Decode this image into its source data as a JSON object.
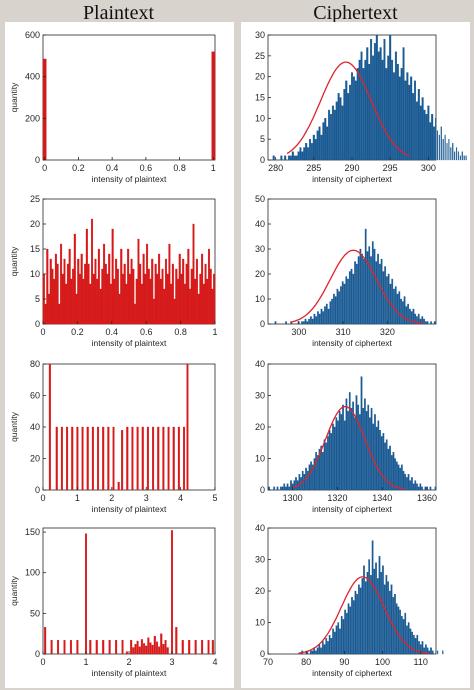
{
  "column_titles": {
    "left": "Plaintext",
    "right": "Ciphertext"
  },
  "colors": {
    "plain_bar": "#d61a1a",
    "cipher_bar": "#1a5a93",
    "fit_curve": "#e0242c",
    "panel_bg": "#d9d3cd"
  },
  "chart_data": [
    {
      "type": "bar",
      "column": "plaintext",
      "xlabel": "intensity of plaintext",
      "ylabel": "quantity",
      "xlim": [
        -0.01,
        1.01
      ],
      "ylim": [
        0,
        600
      ],
      "xticks": [
        0,
        0.2,
        0.4,
        0.6,
        0.8,
        1
      ],
      "xtick_labels": [
        "0",
        "0.2",
        "0.4",
        "0.6",
        "0.8",
        "1"
      ],
      "yticks": [
        0,
        200,
        400,
        600
      ],
      "ytick_labels": [
        "0",
        "200",
        "400",
        "600"
      ],
      "bar_width": 0.02,
      "x": [
        0,
        1
      ],
      "values": [
        485,
        520
      ],
      "fit": null
    },
    {
      "type": "bar",
      "column": "plaintext",
      "xlabel": "intensity of plaintext",
      "ylabel": "quantity",
      "xlim": [
        0,
        1
      ],
      "ylim": [
        0,
        25
      ],
      "xticks": [
        0,
        0.2,
        0.4,
        0.6,
        0.8,
        1
      ],
      "xtick_labels": [
        "0",
        "0.2",
        "0.4",
        "0.6",
        "0.8",
        "1"
      ],
      "yticks": [
        0,
        5,
        10,
        15,
        20,
        25
      ],
      "ytick_labels": [
        "0",
        "5",
        "10",
        "15",
        "20",
        "25"
      ],
      "bar_width": 0.01,
      "x_start": 0.005,
      "x_step": 0.01,
      "values": [
        10,
        4,
        15,
        6,
        13,
        11,
        9,
        14,
        12,
        4,
        16,
        10,
        13,
        8,
        12,
        15,
        9,
        11,
        18,
        6,
        13,
        10,
        14,
        9,
        12,
        19,
        12,
        8,
        21,
        10,
        13,
        9,
        15,
        7,
        11,
        16,
        12,
        10,
        14,
        8,
        19,
        9,
        13,
        11,
        6,
        15,
        10,
        12,
        8,
        15,
        10,
        13,
        11,
        4,
        9,
        17,
        12,
        8,
        14,
        10,
        16,
        11,
        9,
        13,
        5,
        12,
        10,
        14,
        9,
        11,
        7,
        13,
        10,
        16,
        8,
        12,
        5,
        11,
        9,
        14,
        10,
        13,
        8,
        12,
        15,
        7,
        11,
        20,
        9,
        13,
        6,
        10,
        14,
        8,
        12,
        9,
        15,
        11,
        7,
        10
      ],
      "fit": null
    },
    {
      "type": "bar",
      "column": "plaintext",
      "xlabel": "intensity of plaintext",
      "ylabel": "quantity",
      "xlim": [
        0,
        5
      ],
      "ylim": [
        0,
        80
      ],
      "xticks": [
        0,
        1,
        2,
        3,
        4,
        5
      ],
      "xtick_labels": [
        "0",
        "1",
        "2",
        "3",
        "4",
        "5"
      ],
      "yticks": [
        0,
        20,
        40,
        60,
        80
      ],
      "ytick_labels": [
        "0",
        "20",
        "40",
        "60",
        "80"
      ],
      "bar_width": 0.05,
      "x": [
        0.2,
        0.4,
        0.55,
        0.7,
        0.85,
        1.0,
        1.15,
        1.3,
        1.45,
        1.6,
        1.75,
        1.9,
        2.05,
        2.2,
        2.3,
        2.45,
        2.6,
        2.75,
        2.9,
        3.05,
        3.2,
        3.35,
        3.5,
        3.65,
        3.8,
        3.95,
        4.1,
        4.2
      ],
      "values": [
        80,
        40,
        40,
        40,
        40,
        40,
        40,
        40,
        40,
        40,
        40,
        40,
        40,
        5,
        38,
        40,
        40,
        40,
        40,
        40,
        40,
        40,
        40,
        40,
        40,
        40,
        40,
        80
      ],
      "fit": null
    },
    {
      "type": "bar",
      "column": "plaintext",
      "xlabel": "intensity of plaintext",
      "ylabel": "quantity",
      "xlim": [
        0,
        4
      ],
      "ylim": [
        0,
        155
      ],
      "xticks": [
        0,
        1,
        2,
        3,
        4
      ],
      "xtick_labels": [
        "0",
        "1",
        "2",
        "3",
        "4"
      ],
      "yticks": [
        0,
        50,
        100,
        150
      ],
      "ytick_labels": [
        "0",
        "50",
        "100",
        "150"
      ],
      "bar_width": 0.04,
      "x": [
        0.05,
        0.2,
        0.35,
        0.5,
        0.65,
        0.8,
        1.0,
        1.1,
        1.25,
        1.4,
        1.55,
        1.7,
        1.85,
        1.95,
        2.05,
        2.1,
        2.15,
        2.2,
        2.25,
        2.3,
        2.35,
        2.4,
        2.45,
        2.5,
        2.55,
        2.6,
        2.65,
        2.7,
        2.75,
        2.8,
        2.85,
        2.9,
        3.0,
        3.1,
        3.25,
        3.4,
        3.55,
        3.7,
        3.85,
        3.95
      ],
      "values": [
        33,
        17,
        17,
        17,
        17,
        17,
        148,
        17,
        17,
        17,
        17,
        17,
        17,
        3,
        17,
        8,
        12,
        16,
        9,
        18,
        13,
        10,
        20,
        14,
        11,
        22,
        15,
        9,
        25,
        12,
        17,
        8,
        152,
        33,
        17,
        17,
        17,
        17,
        17,
        17
      ],
      "fit": null
    },
    {
      "type": "bar",
      "column": "ciphertext",
      "xlabel": "intensity of ciphertext",
      "ylabel": "",
      "xlim": [
        279,
        301
      ],
      "ylim": [
        0,
        30
      ],
      "xticks": [
        280,
        285,
        290,
        295,
        300
      ],
      "xtick_labels": [
        "280",
        "285",
        "290",
        "295",
        "300"
      ],
      "yticks": [
        0,
        5,
        10,
        15,
        20,
        25,
        30
      ],
      "ytick_labels": [
        "0",
        "5",
        "10",
        "15",
        "20",
        "25",
        "30"
      ],
      "bar_width": 0.22,
      "x_start": 279.5,
      "x_step": 0.25,
      "values": [
        0,
        1,
        0,
        0,
        0,
        1,
        0,
        1,
        0,
        1,
        1,
        2,
        1,
        1,
        2,
        3,
        2,
        3,
        4,
        3,
        5,
        4,
        6,
        5,
        7,
        8,
        6,
        9,
        10,
        8,
        12,
        11,
        13,
        12,
        14,
        16,
        15,
        13,
        17,
        19,
        16,
        18,
        21,
        20,
        19,
        22,
        24,
        26,
        22,
        24,
        27,
        23,
        29,
        25,
        28,
        30,
        26,
        27,
        24,
        29,
        22,
        25,
        30,
        24,
        21,
        26,
        23,
        20,
        22,
        27,
        19,
        21,
        18,
        20,
        16,
        19,
        14,
        17,
        13,
        15,
        12,
        11,
        13,
        9,
        11,
        8,
        10,
        7,
        6,
        8,
        5,
        6,
        4,
        5,
        3,
        4,
        2,
        3,
        2,
        1,
        2,
        1,
        1,
        0
      ],
      "fit": {
        "mu": 289.2,
        "sigma": 3.3,
        "peak": 23.5,
        "range": [
          281.5,
          297.5
        ]
      }
    },
    {
      "type": "bar",
      "column": "ciphertext",
      "xlabel": "intensity of ciphertext",
      "ylabel": "",
      "xlim": [
        293,
        331
      ],
      "ylim": [
        0,
        50
      ],
      "xticks": [
        300,
        310,
        320
      ],
      "xtick_labels": [
        "300",
        "310",
        "320"
      ],
      "yticks": [
        0,
        10,
        20,
        30,
        40,
        50
      ],
      "ytick_labels": [
        "0",
        "10",
        "20",
        "30",
        "40",
        "50"
      ],
      "bar_width": 0.32,
      "x_start": 293.5,
      "x_step": 0.4,
      "values": [
        0,
        0,
        0,
        1,
        0,
        0,
        0,
        0,
        0,
        1,
        0,
        0,
        1,
        0,
        0,
        0,
        1,
        0,
        1,
        1,
        2,
        1,
        2,
        3,
        2,
        4,
        3,
        5,
        4,
        6,
        5,
        7,
        8,
        6,
        9,
        10,
        12,
        11,
        14,
        13,
        15,
        17,
        16,
        19,
        18,
        21,
        22,
        20,
        25,
        24,
        27,
        30,
        28,
        26,
        38,
        29,
        31,
        27,
        33,
        30,
        25,
        28,
        24,
        26,
        21,
        23,
        19,
        20,
        16,
        18,
        14,
        15,
        12,
        13,
        10,
        9,
        11,
        7,
        8,
        6,
        5,
        6,
        4,
        3,
        4,
        2,
        3,
        2,
        1,
        1,
        0,
        1,
        0,
        1,
        0,
        0
      ],
      "fit": {
        "mu": 312.3,
        "sigma": 5.2,
        "peak": 29.5,
        "range": [
          298,
          328
        ]
      }
    },
    {
      "type": "bar",
      "column": "ciphertext",
      "xlabel": "intensity of ciphertext",
      "ylabel": "",
      "xlim": [
        1289,
        1364
      ],
      "ylim": [
        0,
        40
      ],
      "xticks": [
        1300,
        1320,
        1340,
        1360
      ],
      "xtick_labels": [
        "1300",
        "1320",
        "1340",
        "1360"
      ],
      "yticks": [
        0,
        10,
        20,
        30,
        40
      ],
      "ytick_labels": [
        "0",
        "10",
        "20",
        "30",
        "40"
      ],
      "bar_width": 0.62,
      "x_start": 1289.5,
      "x_step": 0.75,
      "values": [
        1,
        0,
        0,
        1,
        0,
        1,
        0,
        1,
        1,
        2,
        1,
        2,
        1,
        3,
        2,
        3,
        4,
        3,
        5,
        4,
        6,
        5,
        7,
        6,
        8,
        9,
        8,
        10,
        12,
        11,
        13,
        14,
        12,
        16,
        15,
        17,
        19,
        18,
        21,
        20,
        23,
        22,
        25,
        24,
        27,
        22,
        29,
        25,
        31,
        26,
        28,
        23,
        30,
        27,
        24,
        36,
        26,
        29,
        25,
        27,
        23,
        26,
        21,
        24,
        20,
        22,
        19,
        17,
        18,
        15,
        16,
        13,
        14,
        11,
        12,
        10,
        9,
        8,
        7,
        8,
        6,
        5,
        4,
        5,
        3,
        4,
        2,
        3,
        2,
        1,
        2,
        1,
        0,
        1,
        1,
        0,
        1,
        0,
        0,
        1
      ],
      "fit": {
        "mu": 1323.5,
        "sigma": 8.8,
        "peak": 26.5,
        "range": [
          1300,
          1350
        ]
      }
    },
    {
      "type": "bar",
      "column": "ciphertext",
      "xlabel": "intensity of ciphertext",
      "ylabel": "",
      "xlim": [
        70,
        114
      ],
      "ylim": [
        0,
        40
      ],
      "xticks": [
        70,
        80,
        90,
        100,
        110
      ],
      "xtick_labels": [
        "70",
        "80",
        "90",
        "100",
        "110"
      ],
      "yticks": [
        0,
        10,
        20,
        30,
        40
      ],
      "ytick_labels": [
        "0",
        "10",
        "20",
        "30",
        "40"
      ],
      "bar_width": 0.36,
      "x_start": 78.5,
      "x_step": 0.45,
      "values": [
        0,
        1,
        0,
        0,
        1,
        0,
        1,
        1,
        2,
        1,
        2,
        3,
        2,
        4,
        3,
        5,
        4,
        6,
        5,
        8,
        7,
        9,
        10,
        8,
        12,
        11,
        14,
        13,
        16,
        15,
        18,
        17,
        20,
        19,
        22,
        21,
        24,
        28,
        23,
        26,
        30,
        25,
        36,
        27,
        29,
        24,
        31,
        26,
        28,
        22,
        25,
        23,
        20,
        22,
        18,
        19,
        16,
        15,
        14,
        12,
        11,
        13,
        9,
        10,
        8,
        7,
        6,
        5,
        6,
        4,
        3,
        4,
        2,
        3,
        2,
        1,
        2,
        1,
        0,
        1,
        1,
        0,
        0,
        1
      ],
      "fit": {
        "mu": 94.8,
        "sigma": 5.6,
        "peak": 24.5,
        "range": [
          78,
          112
        ]
      }
    }
  ]
}
